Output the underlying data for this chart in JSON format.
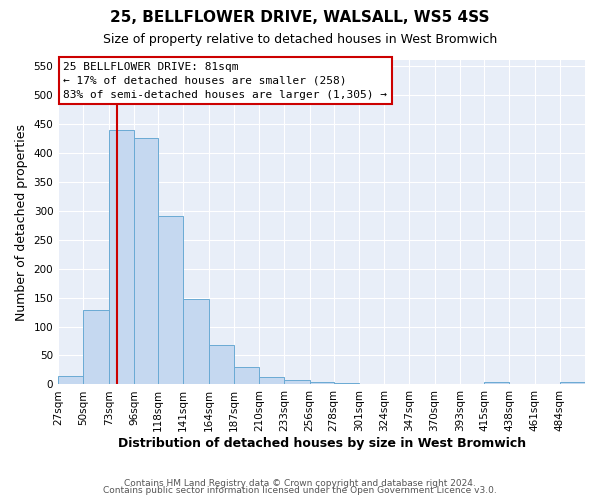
{
  "title": "25, BELLFLOWER DRIVE, WALSALL, WS5 4SS",
  "subtitle": "Size of property relative to detached houses in West Bromwich",
  "xlabel": "Distribution of detached houses by size in West Bromwich",
  "ylabel": "Number of detached properties",
  "bin_labels": [
    "27sqm",
    "50sqm",
    "73sqm",
    "96sqm",
    "118sqm",
    "141sqm",
    "164sqm",
    "187sqm",
    "210sqm",
    "233sqm",
    "256sqm",
    "278sqm",
    "301sqm",
    "324sqm",
    "347sqm",
    "370sqm",
    "393sqm",
    "415sqm",
    "438sqm",
    "461sqm",
    "484sqm"
  ],
  "bin_edges": [
    27,
    50,
    73,
    96,
    118,
    141,
    164,
    187,
    210,
    233,
    256,
    278,
    301,
    324,
    347,
    370,
    393,
    415,
    438,
    461,
    484,
    507
  ],
  "bar_heights": [
    15,
    128,
    440,
    425,
    290,
    147,
    68,
    30,
    13,
    8,
    5,
    2,
    1,
    1,
    1,
    0,
    0,
    5,
    0,
    0,
    5
  ],
  "bar_color": "#c5d8f0",
  "bar_edge_color": "#6aaad4",
  "vline_x": 81,
  "vline_color": "#cc0000",
  "annotation_lines": [
    "25 BELLFLOWER DRIVE: 81sqm",
    "← 17% of detached houses are smaller (258)",
    "83% of semi-detached houses are larger (1,305) →"
  ],
  "ylim": [
    0,
    560
  ],
  "yticks": [
    0,
    50,
    100,
    150,
    200,
    250,
    300,
    350,
    400,
    450,
    500,
    550
  ],
  "footer_lines": [
    "Contains HM Land Registry data © Crown copyright and database right 2024.",
    "Contains public sector information licensed under the Open Government Licence v3.0."
  ],
  "bg_color": "#ffffff",
  "plot_bg_color": "#e8eef8",
  "grid_color": "#ffffff",
  "title_fontsize": 11,
  "subtitle_fontsize": 9,
  "xlabel_fontsize": 9,
  "ylabel_fontsize": 9,
  "tick_fontsize": 7.5,
  "annotation_fontsize": 8,
  "footer_fontsize": 6.5
}
